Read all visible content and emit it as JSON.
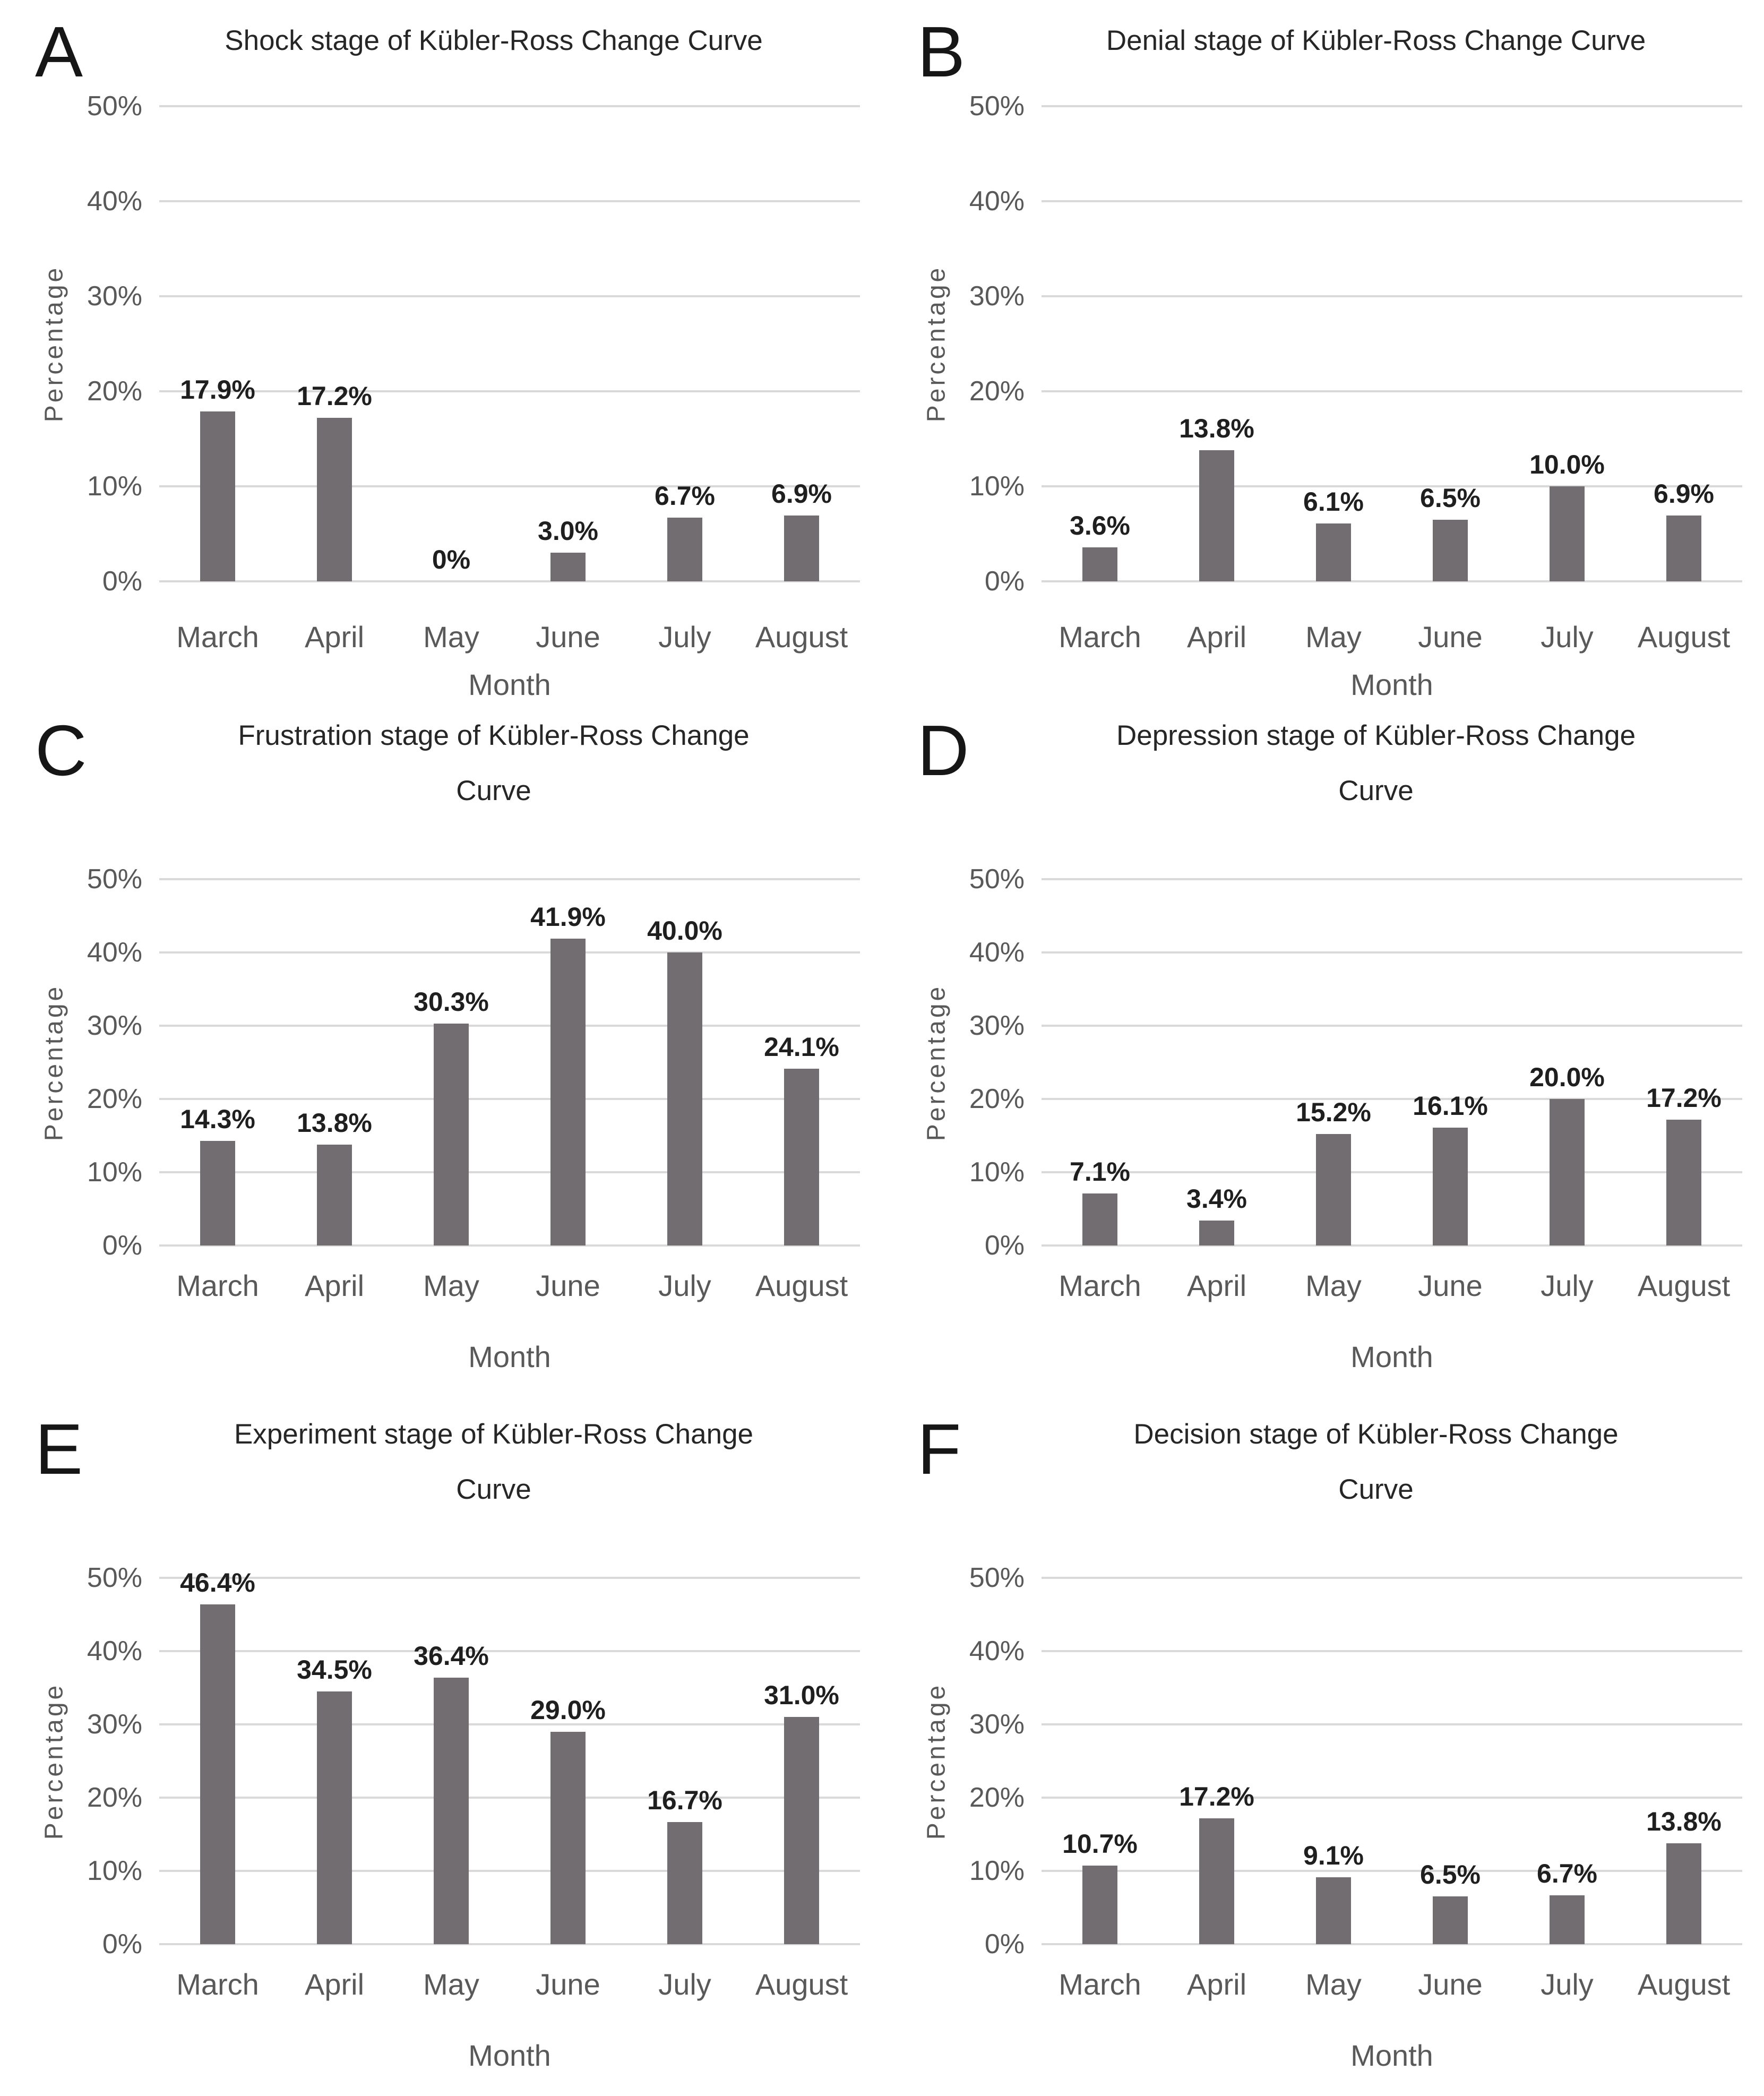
{
  "figure_background": "#ffffff",
  "colors": {
    "bar": "#726d70",
    "gridline": "#d9d9d9",
    "axis_text": "#595959",
    "data_label": "#1f1f1f",
    "title_text": "#262626",
    "letter_text": "#161616"
  },
  "chart_data": [
    {
      "panel": "A",
      "type": "bar",
      "title": "Shock stage of Kübler-Ross Change Curve",
      "title_lines": [
        "Shock stage of Kübler-Ross Change Curve"
      ],
      "xlabel": "Month",
      "ylabel": "Percentage",
      "ylim": [
        0,
        50
      ],
      "yticks": [
        50,
        40,
        30,
        20,
        10,
        0
      ],
      "ytick_labels": [
        "50%",
        "40%",
        "30%",
        "20%",
        "10%",
        "0%"
      ],
      "grid": true,
      "legend": false,
      "categories": [
        "March",
        "April",
        "May",
        "June",
        "July",
        "August"
      ],
      "values": [
        17.9,
        17.2,
        0,
        3.0,
        6.7,
        6.9
      ],
      "data_labels": [
        "17.9%",
        "17.2%",
        "0%",
        "3.0%",
        "6.7%",
        "6.9%"
      ]
    },
    {
      "panel": "B",
      "type": "bar",
      "title": "Denial stage of Kübler-Ross Change Curve",
      "title_lines": [
        "Denial stage of Kübler-Ross Change Curve"
      ],
      "xlabel": "Month",
      "ylabel": "Percentage",
      "ylim": [
        0,
        50
      ],
      "yticks": [
        50,
        40,
        30,
        20,
        10,
        0
      ],
      "ytick_labels": [
        "50%",
        "40%",
        "30%",
        "20%",
        "10%",
        "0%"
      ],
      "grid": true,
      "legend": false,
      "categories": [
        "March",
        "April",
        "May",
        "June",
        "July",
        "August"
      ],
      "values": [
        3.6,
        13.8,
        6.1,
        6.5,
        10.0,
        6.9
      ],
      "data_labels": [
        "3.6%",
        "13.8%",
        "6.1%",
        "6.5%",
        "10.0%",
        "6.9%"
      ]
    },
    {
      "panel": "C",
      "type": "bar",
      "title": "Frustration stage of Kübler-Ross Change Curve",
      "title_lines": [
        "Frustration stage of Kübler-Ross Change",
        "Curve"
      ],
      "xlabel": "Month",
      "ylabel": "Percentage",
      "ylim": [
        0,
        50
      ],
      "yticks": [
        50,
        40,
        30,
        20,
        10,
        0
      ],
      "ytick_labels": [
        "50%",
        "40%",
        "30%",
        "20%",
        "10%",
        "0%"
      ],
      "grid": true,
      "legend": false,
      "categories": [
        "March",
        "April",
        "May",
        "June",
        "July",
        "August"
      ],
      "values": [
        14.3,
        13.8,
        30.3,
        41.9,
        40.0,
        24.1
      ],
      "data_labels": [
        "14.3%",
        "13.8%",
        "30.3%",
        "41.9%",
        "40.0%",
        "24.1%"
      ]
    },
    {
      "panel": "D",
      "type": "bar",
      "title": "Depression stage of Kübler-Ross Change Curve",
      "title_lines": [
        "Depression stage of Kübler-Ross Change",
        "Curve"
      ],
      "xlabel": "Month",
      "ylabel": "Percentage",
      "ylim": [
        0,
        50
      ],
      "yticks": [
        50,
        40,
        30,
        20,
        10,
        0
      ],
      "ytick_labels": [
        "50%",
        "40%",
        "30%",
        "20%",
        "10%",
        "0%"
      ],
      "grid": true,
      "legend": false,
      "categories": [
        "March",
        "April",
        "May",
        "June",
        "July",
        "August"
      ],
      "values": [
        7.1,
        3.4,
        15.2,
        16.1,
        20.0,
        17.2
      ],
      "data_labels": [
        "7.1%",
        "3.4%",
        "15.2%",
        "16.1%",
        "20.0%",
        "17.2%"
      ]
    },
    {
      "panel": "E",
      "type": "bar",
      "title": "Experiment stage of Kübler-Ross Change Curve",
      "title_lines": [
        "Experiment stage of Kübler-Ross Change",
        "Curve"
      ],
      "xlabel": "Month",
      "ylabel": "Percentage",
      "ylim": [
        0,
        50
      ],
      "yticks": [
        50,
        40,
        30,
        20,
        10,
        0
      ],
      "ytick_labels": [
        "50%",
        "40%",
        "30%",
        "20%",
        "10%",
        "0%"
      ],
      "grid": true,
      "legend": false,
      "categories": [
        "March",
        "April",
        "May",
        "June",
        "July",
        "August"
      ],
      "values": [
        46.4,
        34.5,
        36.4,
        29.0,
        16.7,
        31.0
      ],
      "data_labels": [
        "46.4%",
        "34.5%",
        "36.4%",
        "29.0%",
        "16.7%",
        "31.0%"
      ]
    },
    {
      "panel": "F",
      "type": "bar",
      "title": "Decision stage of Kübler-Ross Change Curve",
      "title_lines": [
        "Decision stage of Kübler-Ross Change",
        "Curve"
      ],
      "xlabel": "Month",
      "ylabel": "Percentage",
      "ylim": [
        0,
        50
      ],
      "yticks": [
        50,
        40,
        30,
        20,
        10,
        0
      ],
      "ytick_labels": [
        "50%",
        "40%",
        "30%",
        "20%",
        "10%",
        "0%"
      ],
      "grid": true,
      "legend": false,
      "categories": [
        "March",
        "April",
        "May",
        "June",
        "July",
        "August"
      ],
      "values": [
        10.7,
        17.2,
        9.1,
        6.5,
        6.7,
        13.8
      ],
      "data_labels": [
        "10.7%",
        "17.2%",
        "9.1%",
        "6.5%",
        "6.7%",
        "13.8%"
      ]
    }
  ]
}
